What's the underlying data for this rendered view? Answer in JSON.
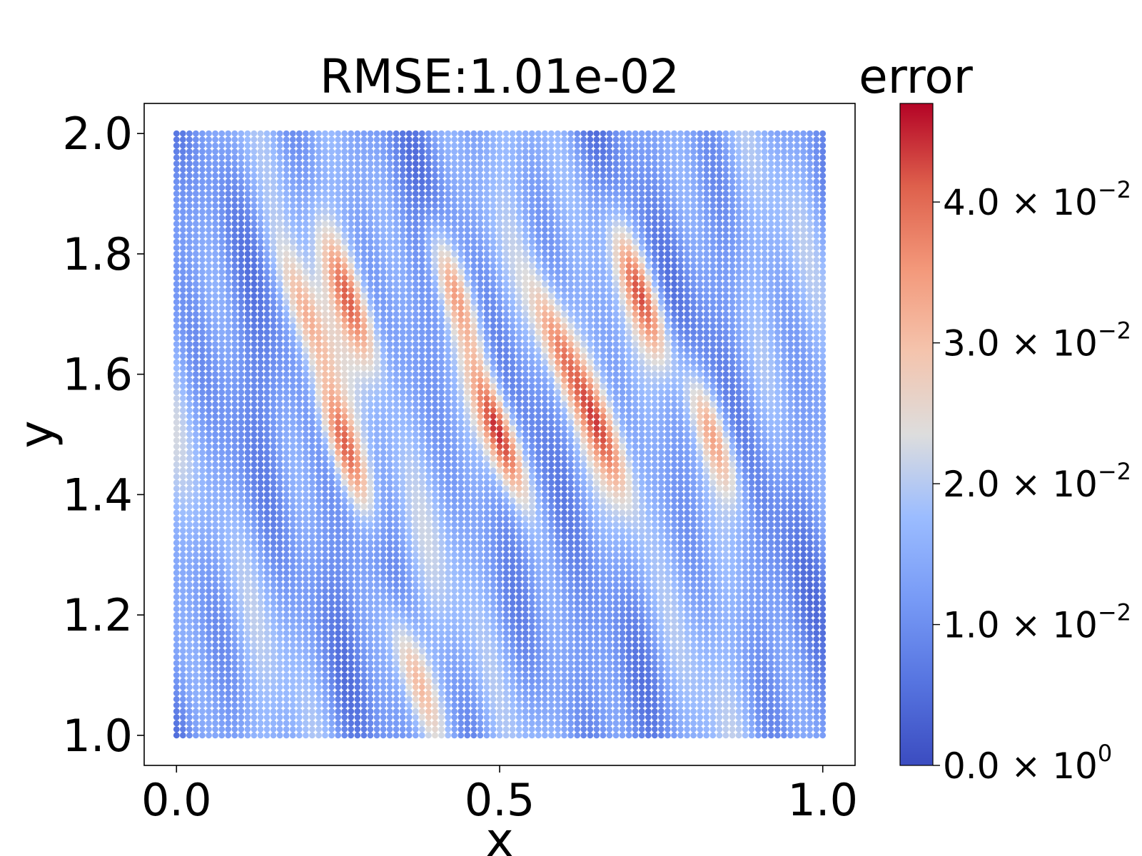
{
  "chart_data": {
    "type": "scatter",
    "title": "RMSE:1.01e-02",
    "xlabel": "x",
    "ylabel": "y",
    "xlim": [
      -0.05,
      1.05
    ],
    "ylim": [
      0.95,
      2.05
    ],
    "x_ticks": [
      {
        "value": 0.0,
        "label": "0.0"
      },
      {
        "value": 0.5,
        "label": "0.5"
      },
      {
        "value": 1.0,
        "label": "1.0"
      }
    ],
    "y_ticks": [
      {
        "value": 1.0,
        "label": "1.0"
      },
      {
        "value": 1.2,
        "label": "1.2"
      },
      {
        "value": 1.4,
        "label": "1.4"
      },
      {
        "value": 1.6,
        "label": "1.6"
      },
      {
        "value": 1.8,
        "label": "1.8"
      },
      {
        "value": 2.0,
        "label": "2.0"
      }
    ],
    "grid": false,
    "colormap": "coolwarm",
    "colorbar": {
      "title": "error",
      "vmin": 0.0,
      "vmax": 0.047,
      "ticks": [
        {
          "value": 0.0,
          "mantissa": "0.0",
          "times": "×",
          "base": "10",
          "exponent": "0"
        },
        {
          "value": 0.01,
          "mantissa": "1.0",
          "times": "×",
          "base": "10",
          "exponent": "−2"
        },
        {
          "value": 0.02,
          "mantissa": "2.0",
          "times": "×",
          "base": "10",
          "exponent": "−2"
        },
        {
          "value": 0.03,
          "mantissa": "3.0",
          "times": "×",
          "base": "10",
          "exponent": "−2"
        },
        {
          "value": 0.04,
          "mantissa": "4.0",
          "times": "×",
          "base": "10",
          "exponent": "−2"
        }
      ]
    },
    "grid_points": {
      "x_min": 0.0,
      "x_max": 1.0,
      "y_min": 1.0,
      "y_max": 2.0,
      "nx": 101,
      "ny": 101
    },
    "error_features": [
      {
        "x": 0.5,
        "y": 1.5,
        "peak": 0.047
      },
      {
        "x": 0.26,
        "y": 1.48,
        "peak": 0.04
      },
      {
        "x": 0.27,
        "y": 1.72,
        "peak": 0.035
      },
      {
        "x": 0.43,
        "y": 1.74,
        "peak": 0.035
      },
      {
        "x": 0.59,
        "y": 1.65,
        "peak": 0.034
      },
      {
        "x": 0.72,
        "y": 1.73,
        "peak": 0.038
      },
      {
        "x": 0.83,
        "y": 1.5,
        "peak": 0.033
      },
      {
        "x": 0.37,
        "y": 1.1,
        "peak": 0.03
      },
      {
        "x": 0.2,
        "y": 1.7,
        "peak": 0.03
      },
      {
        "x": 0.66,
        "y": 1.5,
        "peak": 0.033
      }
    ]
  }
}
